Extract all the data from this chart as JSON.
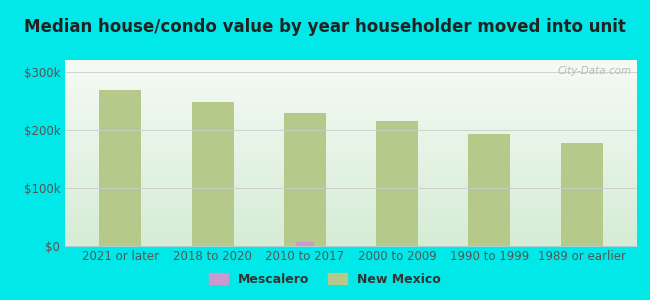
{
  "title": "Median house/condo value by year householder moved into unit",
  "categories": [
    "2021 or later",
    "2018 to 2020",
    "2010 to 2017",
    "2000 to 2009",
    "1990 to 1999",
    "1989 or earlier"
  ],
  "nm_values": [
    268000,
    248000,
    228000,
    215000,
    193000,
    177000
  ],
  "mescalero_values": [
    0,
    0,
    7500,
    0,
    0,
    0
  ],
  "nm_bar_color": "#b5c98a",
  "mescalero_bar_color": "#cc99cc",
  "bg_outer": "#00e8e8",
  "bg_plot_bottom": "#d6ecd6",
  "bg_plot_top": "#f5faf5",
  "ylim": [
    0,
    320000
  ],
  "yticks": [
    0,
    100000,
    200000,
    300000
  ],
  "ytick_labels": [
    "$0",
    "$100k",
    "$200k",
    "$300k"
  ],
  "bar_width": 0.35,
  "watermark": "City-Data.com",
  "legend_mescalero": "Mescalero",
  "legend_nm": "New Mexico",
  "title_fontsize": 12,
  "tick_fontsize": 8.5
}
